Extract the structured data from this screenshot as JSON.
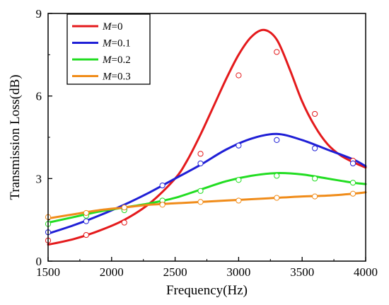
{
  "chart_data": {
    "type": "line",
    "title": "",
    "xlabel": "Frequency(Hz)",
    "ylabel": "Transmission Loss(dB)",
    "xlim": [
      1500,
      4000
    ],
    "ylim": [
      0,
      9
    ],
    "xticks": [
      1500,
      2000,
      2500,
      3000,
      3500,
      4000
    ],
    "yticks": [
      0,
      3,
      6,
      9
    ],
    "grid": false,
    "legend": {
      "placement": "top-left",
      "prefix": "M",
      "entries": [
        "=0",
        "=0.1",
        "=0.2",
        "=0.3"
      ]
    },
    "series": [
      {
        "name": "M=0",
        "color": "#e41a1c",
        "curve": [
          [
            1500,
            0.6
          ],
          [
            1700,
            0.8
          ],
          [
            1900,
            1.1
          ],
          [
            2100,
            1.5
          ],
          [
            2300,
            2.1
          ],
          [
            2500,
            3.0
          ],
          [
            2600,
            3.7
          ],
          [
            2700,
            4.6
          ],
          [
            2800,
            5.6
          ],
          [
            2900,
            6.6
          ],
          [
            3000,
            7.5
          ],
          [
            3100,
            8.15
          ],
          [
            3200,
            8.4
          ],
          [
            3300,
            8.05
          ],
          [
            3400,
            7.0
          ],
          [
            3500,
            5.8
          ],
          [
            3600,
            4.9
          ],
          [
            3700,
            4.25
          ],
          [
            3800,
            3.85
          ],
          [
            3900,
            3.6
          ],
          [
            4000,
            3.4
          ]
        ],
        "points": [
          [
            1500,
            0.75
          ],
          [
            1800,
            0.95
          ],
          [
            2100,
            1.4
          ],
          [
            2400,
            2.1
          ],
          [
            2700,
            3.9
          ],
          [
            3000,
            6.75
          ],
          [
            3300,
            7.6
          ],
          [
            3600,
            5.35
          ],
          [
            3900,
            3.65
          ]
        ]
      },
      {
        "name": "M=0.1",
        "color": "#1f1fd6",
        "curve": [
          [
            1500,
            1.0
          ],
          [
            1700,
            1.3
          ],
          [
            1900,
            1.65
          ],
          [
            2100,
            2.05
          ],
          [
            2300,
            2.5
          ],
          [
            2500,
            3.0
          ],
          [
            2700,
            3.5
          ],
          [
            2900,
            4.05
          ],
          [
            3100,
            4.45
          ],
          [
            3300,
            4.62
          ],
          [
            3500,
            4.4
          ],
          [
            3700,
            4.05
          ],
          [
            3900,
            3.7
          ],
          [
            4000,
            3.45
          ]
        ],
        "points": [
          [
            1500,
            1.05
          ],
          [
            1800,
            1.45
          ],
          [
            2100,
            1.9
          ],
          [
            2400,
            2.75
          ],
          [
            2700,
            3.55
          ],
          [
            3000,
            4.2
          ],
          [
            3300,
            4.4
          ],
          [
            3600,
            4.1
          ],
          [
            3900,
            3.55
          ]
        ]
      },
      {
        "name": "M=0.2",
        "color": "#22dd22",
        "curve": [
          [
            1500,
            1.4
          ],
          [
            1700,
            1.6
          ],
          [
            1900,
            1.8
          ],
          [
            2100,
            1.95
          ],
          [
            2300,
            2.1
          ],
          [
            2500,
            2.3
          ],
          [
            2700,
            2.6
          ],
          [
            2900,
            2.9
          ],
          [
            3100,
            3.1
          ],
          [
            3300,
            3.2
          ],
          [
            3500,
            3.15
          ],
          [
            3700,
            3.0
          ],
          [
            3900,
            2.85
          ],
          [
            4000,
            2.8
          ]
        ],
        "points": [
          [
            1500,
            1.35
          ],
          [
            1800,
            1.65
          ],
          [
            2100,
            1.85
          ],
          [
            2400,
            2.2
          ],
          [
            2700,
            2.55
          ],
          [
            3000,
            2.95
          ],
          [
            3300,
            3.1
          ],
          [
            3600,
            3.0
          ],
          [
            3900,
            2.85
          ]
        ]
      },
      {
        "name": "M=0.3",
        "color": "#f08c1a",
        "curve": [
          [
            1500,
            1.55
          ],
          [
            1700,
            1.7
          ],
          [
            1900,
            1.85
          ],
          [
            2100,
            1.95
          ],
          [
            2300,
            2.05
          ],
          [
            2500,
            2.1
          ],
          [
            2700,
            2.15
          ],
          [
            2900,
            2.2
          ],
          [
            3100,
            2.25
          ],
          [
            3300,
            2.3
          ],
          [
            3500,
            2.35
          ],
          [
            3700,
            2.38
          ],
          [
            3900,
            2.45
          ],
          [
            4000,
            2.5
          ]
        ],
        "points": [
          [
            1500,
            1.6
          ],
          [
            1800,
            1.75
          ],
          [
            2100,
            1.95
          ],
          [
            2400,
            2.05
          ],
          [
            2700,
            2.15
          ],
          [
            3000,
            2.2
          ],
          [
            3300,
            2.3
          ],
          [
            3600,
            2.35
          ],
          [
            3900,
            2.45
          ]
        ]
      }
    ]
  }
}
